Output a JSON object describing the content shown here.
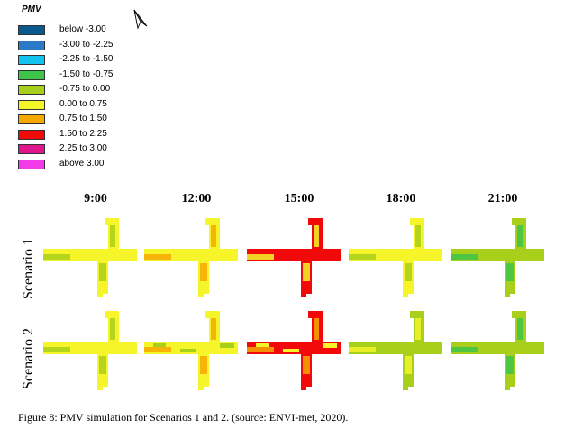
{
  "legend": {
    "title": "PMV",
    "items": [
      {
        "label": "below -3.00",
        "color": "#0b5a8f"
      },
      {
        "label": "-3.00 to -2.25",
        "color": "#2a78c8"
      },
      {
        "label": "-2.25 to -1.50",
        "color": "#12c2f0"
      },
      {
        "label": "-1.50 to -0.75",
        "color": "#3ec44a"
      },
      {
        "label": "-0.75 to 0.00",
        "color": "#a8cf1a"
      },
      {
        "label": "0.00 to 0.75",
        "color": "#f5f52a"
      },
      {
        "label": "0.75 to 1.50",
        "color": "#f5a800"
      },
      {
        "label": "1.50 to 2.25",
        "color": "#f20a0a"
      },
      {
        "label": "2.25 to 3.00",
        "color": "#e0148c"
      },
      {
        "label": "above 3.00",
        "color": "#f23ae8"
      }
    ]
  },
  "columns": [
    "9:00",
    "12:00",
    "15:00",
    "18:00",
    "21:00"
  ],
  "rows": [
    "Scenario 1",
    "Scenario 2"
  ],
  "panels": [
    [
      {
        "base": "#f5f52a",
        "accent": "#a8cf1a",
        "accent2": null
      },
      {
        "base": "#f5f52a",
        "accent": "#f5a800",
        "accent2": null
      },
      {
        "base": "#f20a0a",
        "accent": "#f5f52a",
        "accent2": null
      },
      {
        "base": "#f5f52a",
        "accent": "#a8cf1a",
        "accent2": null
      },
      {
        "base": "#a8cf1a",
        "accent": "#3ec44a",
        "accent2": null
      }
    ],
    [
      {
        "base": "#f5f52a",
        "accent": "#a8cf1a",
        "accent2": null
      },
      {
        "base": "#f5f52a",
        "accent": "#f5a800",
        "accent2": "#a8cf1a"
      },
      {
        "base": "#f20a0a",
        "accent": "#f5a800",
        "accent2": "#f5f52a"
      },
      {
        "base": "#a8cf1a",
        "accent": "#f5f52a",
        "accent2": null
      },
      {
        "base": "#a8cf1a",
        "accent": "#3ec44a",
        "accent2": null
      }
    ]
  ],
  "caption": "Figure 8: PMV simulation for Scenarios 1 and 2. (source: ENVI-met, 2020)."
}
